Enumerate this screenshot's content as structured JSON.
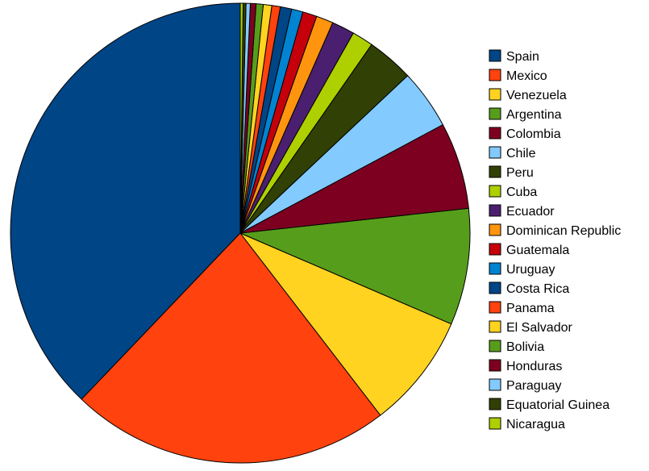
{
  "chart_data": {
    "type": "pie",
    "title": "",
    "legend_position": "right",
    "start_angle_deg": 0,
    "direction": "counterclockwise",
    "slices": [
      {
        "label": "Spain",
        "value": 37.9,
        "color": "#004586"
      },
      {
        "label": "Mexico",
        "value": 22.6,
        "color": "#ff420e"
      },
      {
        "label": "Venezuela",
        "value": 8.1,
        "color": "#ffd320"
      },
      {
        "label": "Argentina",
        "value": 8.2,
        "color": "#579d1c"
      },
      {
        "label": "Colombia",
        "value": 6.1,
        "color": "#7e0021"
      },
      {
        "label": "Chile",
        "value": 4.2,
        "color": "#83caff"
      },
      {
        "label": "Peru",
        "value": 3.3,
        "color": "#314004"
      },
      {
        "label": "Cuba",
        "value": 1.5,
        "color": "#aecf00"
      },
      {
        "label": "Ecuador",
        "value": 1.6,
        "color": "#4b1f6f"
      },
      {
        "label": "Dominican Republic",
        "value": 1.2,
        "color": "#ff950e"
      },
      {
        "label": "Guatemala",
        "value": 1.0,
        "color": "#c5000b"
      },
      {
        "label": "Uruguay",
        "value": 0.8,
        "color": "#0084d1"
      },
      {
        "label": "Costa Rica",
        "value": 0.8,
        "color": "#004586"
      },
      {
        "label": "Panama",
        "value": 0.6,
        "color": "#ff420e"
      },
      {
        "label": "El Salvador",
        "value": 0.6,
        "color": "#ffd320"
      },
      {
        "label": "Bolivia",
        "value": 0.5,
        "color": "#579d1c"
      },
      {
        "label": "Honduras",
        "value": 0.4,
        "color": "#7e0021"
      },
      {
        "label": "Paraguay",
        "value": 0.3,
        "color": "#83caff"
      },
      {
        "label": "Equatorial Guinea",
        "value": 0.2,
        "color": "#314004"
      },
      {
        "label": "Nicaragua",
        "value": 0.2,
        "color": "#aecf00"
      }
    ]
  }
}
